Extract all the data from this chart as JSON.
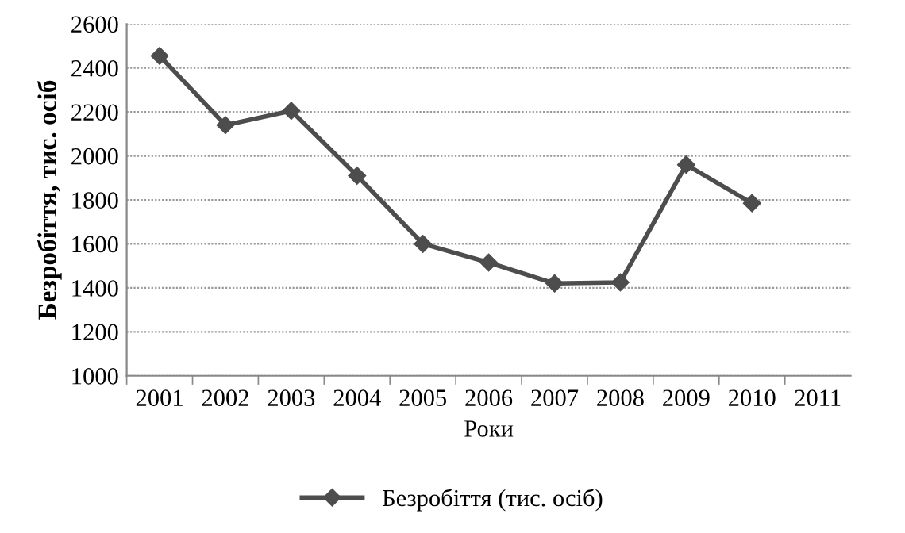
{
  "chart_data": {
    "type": "line",
    "xlabel": "Роки",
    "ylabel": "Безробіття, тис. осіб",
    "categories": [
      "2001",
      "2002",
      "2003",
      "2004",
      "2005",
      "2006",
      "2007",
      "2008",
      "2009",
      "2010",
      "2011"
    ],
    "series": [
      {
        "name": "Безробіття (тис. осіб)",
        "color": "#4d4d4d",
        "values": [
          2455,
          2140,
          2205,
          1910,
          1600,
          1515,
          1420,
          1425,
          1960,
          1785,
          null
        ]
      }
    ],
    "ylim": [
      1000,
      2600
    ],
    "yticks": [
      1000,
      1200,
      1400,
      1600,
      1800,
      2000,
      2200,
      2400,
      2600
    ],
    "grid": "y",
    "legend": "bottom",
    "marker": "diamond",
    "line_style": "solid"
  }
}
